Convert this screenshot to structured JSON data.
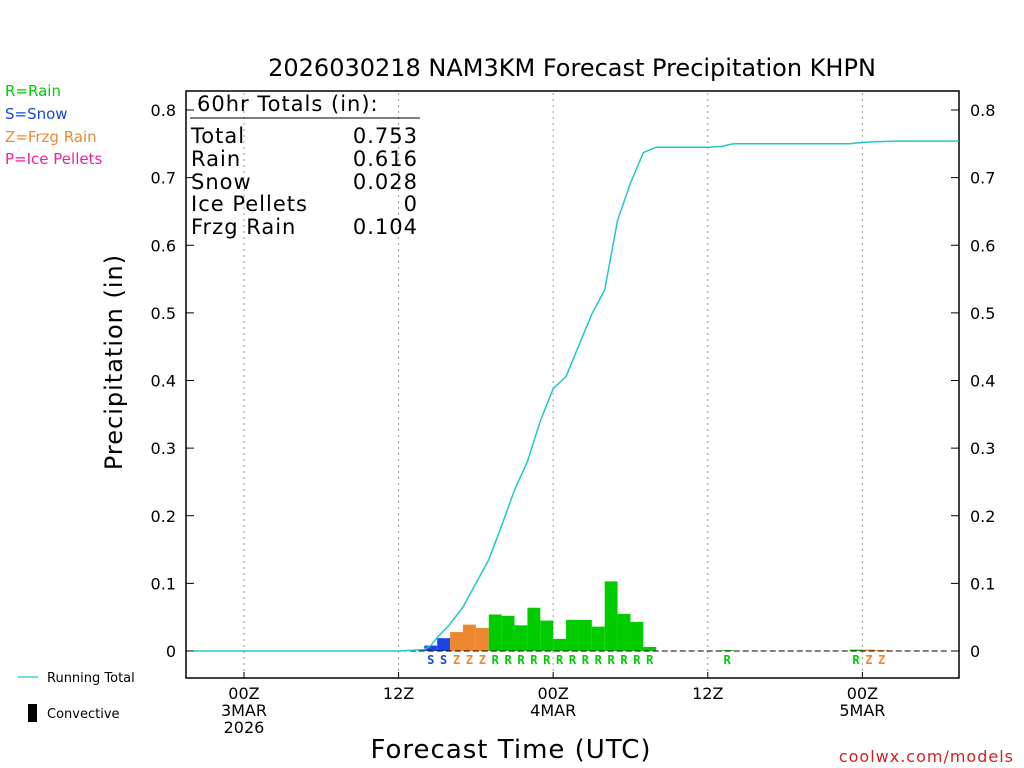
{
  "chart_data": {
    "type": "bar",
    "title": "2026030218 NAM3KM Forecast Precipitation KHPN",
    "xlabel": "Forecast Time (UTC)",
    "ylabel": "Precipitation (in)",
    "credit": "coolwx.com/models",
    "ylim": [
      0,
      0.8
    ],
    "y_ticks": [
      "0",
      "0.1",
      "0.2",
      "0.3",
      "0.4",
      "0.5",
      "0.6",
      "0.7",
      "0.8"
    ],
    "xlim_hours": [
      -4.5,
      55.5
    ],
    "x_ticks": [
      {
        "hour": 0,
        "lines": [
          "00Z",
          "3MAR",
          "2026"
        ]
      },
      {
        "hour": 12,
        "lines": [
          "12Z"
        ]
      },
      {
        "hour": 24,
        "lines": [
          "00Z",
          "4MAR"
        ]
      },
      {
        "hour": 36,
        "lines": [
          "12Z"
        ]
      },
      {
        "hour": 48,
        "lines": [
          "00Z",
          "5MAR"
        ]
      }
    ],
    "type_legend": [
      {
        "code": "R",
        "label": "R=Rain",
        "color": "#00cc00"
      },
      {
        "code": "S",
        "label": "S=Snow",
        "color": "#1a44e6"
      },
      {
        "code": "Z",
        "label": "Z=Frzg Rain",
        "color": "#ee8830"
      },
      {
        "code": "P",
        "label": "P=Ice Pellets",
        "color": "#ee2299"
      }
    ],
    "series_legend": [
      {
        "label": "Running Total",
        "color": "#1ec8c8"
      },
      {
        "label": "Convective",
        "color": "#000000"
      }
    ],
    "totals": {
      "header": "60hr Totals (in):",
      "rows": [
        {
          "label": "Total",
          "value": "0.753"
        },
        {
          "label": "Rain",
          "value": "0.616"
        },
        {
          "label": "Snow",
          "value": "0.028"
        },
        {
          "label": "Ice Pellets",
          "value": "0"
        },
        {
          "label": "Frzg Rain",
          "value": "0.104"
        }
      ]
    },
    "hourly_bars": [
      {
        "hour": 15,
        "value": 0.008,
        "type": "S"
      },
      {
        "hour": 16,
        "value": 0.019,
        "type": "S"
      },
      {
        "hour": 17,
        "value": 0.028,
        "type": "Z"
      },
      {
        "hour": 18,
        "value": 0.039,
        "type": "Z"
      },
      {
        "hour": 19,
        "value": 0.034,
        "type": "Z"
      },
      {
        "hour": 20,
        "value": 0.054,
        "type": "R"
      },
      {
        "hour": 21,
        "value": 0.052,
        "type": "R"
      },
      {
        "hour": 22,
        "value": 0.038,
        "type": "R"
      },
      {
        "hour": 23,
        "value": 0.064,
        "type": "R"
      },
      {
        "hour": 24,
        "value": 0.045,
        "type": "R"
      },
      {
        "hour": 25,
        "value": 0.018,
        "type": "R"
      },
      {
        "hour": 26,
        "value": 0.046,
        "type": "R"
      },
      {
        "hour": 27,
        "value": 0.046,
        "type": "R"
      },
      {
        "hour": 28,
        "value": 0.036,
        "type": "R"
      },
      {
        "hour": 29,
        "value": 0.103,
        "type": "R"
      },
      {
        "hour": 30,
        "value": 0.055,
        "type": "R"
      },
      {
        "hour": 31,
        "value": 0.043,
        "type": "R"
      },
      {
        "hour": 32,
        "value": 0.006,
        "type": "R"
      },
      {
        "hour": 38,
        "value": 0.001,
        "type": "R"
      },
      {
        "hour": 48,
        "value": 0.002,
        "type": "R"
      },
      {
        "hour": 49,
        "value": 0.002,
        "type": "Z"
      },
      {
        "hour": 50,
        "value": 0.001,
        "type": "Z"
      }
    ],
    "running_total": [
      [
        -4.5,
        0.0
      ],
      [
        12.0,
        0.0
      ],
      [
        14.0,
        0.002
      ],
      [
        14.5,
        0.008
      ],
      [
        15.0,
        0.02
      ],
      [
        16.0,
        0.04
      ],
      [
        17.0,
        0.065
      ],
      [
        18.0,
        0.1
      ],
      [
        19.0,
        0.135
      ],
      [
        20.0,
        0.185
      ],
      [
        21.0,
        0.238
      ],
      [
        22.0,
        0.28
      ],
      [
        23.0,
        0.34
      ],
      [
        24.0,
        0.388
      ],
      [
        25.0,
        0.406
      ],
      [
        26.0,
        0.452
      ],
      [
        27.0,
        0.498
      ],
      [
        28.0,
        0.534
      ],
      [
        29.0,
        0.637
      ],
      [
        30.0,
        0.692
      ],
      [
        31.0,
        0.737
      ],
      [
        32.0,
        0.745
      ],
      [
        36.0,
        0.745
      ],
      [
        37.0,
        0.746
      ],
      [
        38.0,
        0.75
      ],
      [
        47.0,
        0.75
      ],
      [
        48.0,
        0.752
      ],
      [
        49.0,
        0.753
      ],
      [
        51.0,
        0.754
      ],
      [
        55.5,
        0.754
      ]
    ]
  }
}
